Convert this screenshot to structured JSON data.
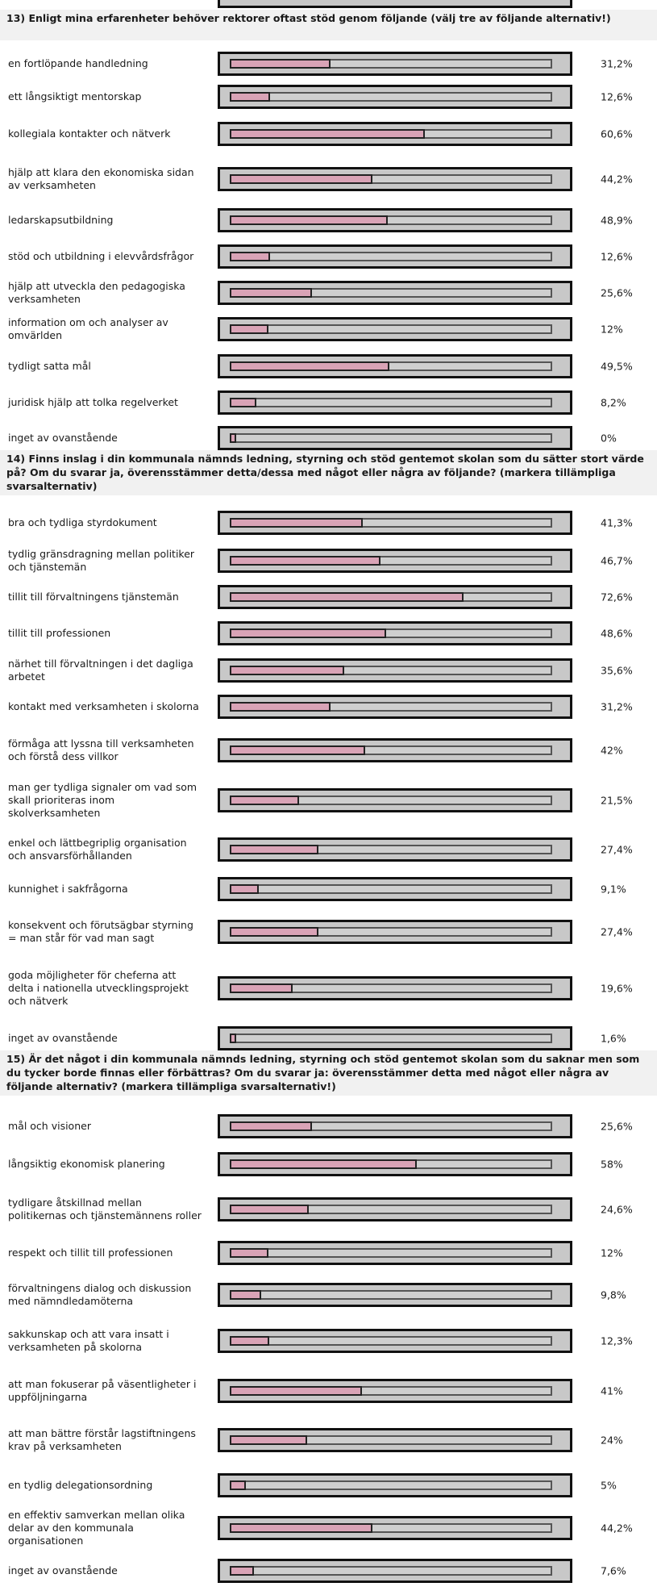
{
  "chart_data": [
    {
      "type": "bar",
      "title": "13) Enligt mina erfarenheter behöver rektorer oftast stöd genom följande (välj tre av följande alternativ!)",
      "xlim": [
        0,
        100
      ],
      "categories": [
        "en fortlöpande handledning",
        "ett långsiktigt mentorskap",
        "kollegiala kontakter och nätverk",
        "hjälp att klara den ekonomiska sidan av verksamheten",
        "ledarskapsutbildning",
        "stöd och utbildning i elevvårdsfrågor",
        "hjälp att utveckla den pedagogiska verksamheten",
        "information om och analyser av omvärlden",
        "tydligt satta mål",
        "juridisk hjälp att tolka regelverket",
        "inget av ovanstående"
      ],
      "values": [
        31.2,
        12.6,
        60.6,
        44.2,
        48.9,
        12.6,
        25.6,
        12,
        49.5,
        8.2,
        0
      ],
      "value_labels": [
        "31,2%",
        "12,6%",
        "60,6%",
        "44,2%",
        "48,9%",
        "12,6%",
        "25,6%",
        "12%",
        "49,5%",
        "8,2%",
        "0%"
      ]
    },
    {
      "type": "bar",
      "title": "14) Finns inslag i din kommunala nämnds ledning, styrning och stöd gentemot skolan som du sätter stort värde på? Om du svarar ja, överensstämmer detta/dessa med något eller några av följande? (markera tillämpliga svarsalternativ)",
      "xlim": [
        0,
        100
      ],
      "categories": [
        "bra och tydliga styrdokument",
        "tydlig gränsdragning mellan politiker och tjänstemän",
        "tillit till förvaltningens tjänstemän",
        "tillit till professionen",
        "närhet till förvaltningen i det dagliga arbetet",
        "kontakt med verksamheten i skolorna",
        "förmåga att lyssna till verksamheten och förstå dess villkor",
        "man ger tydliga signaler om vad som skall prioriteras inom skolverksamheten",
        "enkel och lättbegriplig organisation och ansvarsförhållanden",
        "kunnighet i sakfrågorna",
        "konsekvent och förutsägbar styrning = man står för vad man sagt",
        "goda möjligheter för cheferna att delta i nationella utvecklingsprojekt och nätverk",
        "inget av ovanstående"
      ],
      "values": [
        41.3,
        46.7,
        72.6,
        48.6,
        35.6,
        31.2,
        42,
        21.5,
        27.4,
        9.1,
        27.4,
        19.6,
        1.6
      ],
      "value_labels": [
        "41,3%",
        "46,7%",
        "72,6%",
        "48,6%",
        "35,6%",
        "31,2%",
        "42%",
        "21,5%",
        "27,4%",
        "9,1%",
        "27,4%",
        "19,6%",
        "1,6%"
      ]
    },
    {
      "type": "bar",
      "title": "15) Är det något i din kommunala nämnds ledning, styrning och stöd gentemot skolan som du saknar men som du tycker borde finnas eller förbättras? Om du svarar ja: överensstämmer detta med något eller några av följande alternativ? (markera tillämpliga svarsalternativ!)",
      "xlim": [
        0,
        100
      ],
      "categories": [
        "mål och visioner",
        "långsiktig ekonomisk planering",
        "tydligare åtskillnad mellan politikernas och tjänstemännens roller",
        "respekt och tillit till professionen",
        "förvaltningens dialog och diskussion med nämndledamöterna",
        "sakkunskap och att vara insatt i verksamheten på skolorna",
        "att man fokuserar på väsentligheter i uppföljningarna",
        "att man bättre förstår lagstiftningens krav på verksamheten",
        "en tydlig delegationsordning",
        "en effektiv samverkan mellan olika delar av den kommunala organisationen",
        "inget av ovanstående"
      ],
      "values": [
        25.6,
        58,
        24.6,
        12,
        9.8,
        12.3,
        41,
        24,
        5,
        44.2,
        7.6
      ],
      "value_labels": [
        "25,6%",
        "58%",
        "24,6%",
        "12%",
        "9,8%",
        "12,3%",
        "41%",
        "24%",
        "5%",
        "44,2%",
        "7,6%"
      ]
    }
  ],
  "colors": {
    "fill": "#d9a3b6",
    "track": "#c8c8c8",
    "border": "#111111",
    "header_bg": "#f1f1f1"
  }
}
